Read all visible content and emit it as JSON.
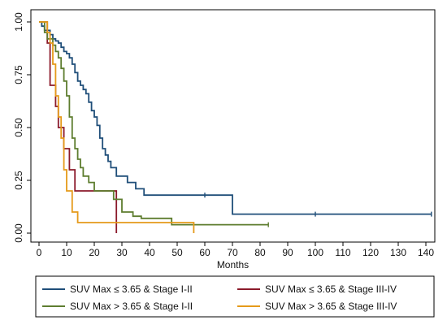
{
  "chart_data": {
    "type": "line",
    "step": true,
    "title": "",
    "xlabel": "Months",
    "ylabel": "",
    "xlim": [
      0,
      145
    ],
    "ylim": [
      0,
      1
    ],
    "xticks": [
      0,
      10,
      20,
      30,
      40,
      50,
      60,
      70,
      80,
      90,
      100,
      110,
      120,
      130,
      140
    ],
    "yticks": [
      0.0,
      0.25,
      0.5,
      0.75,
      1.0
    ],
    "ytick_labels": [
      "0.00",
      "0.25",
      "0.50",
      "0.75",
      "1.00"
    ],
    "grid": false,
    "legend_position": "bottom",
    "series": [
      {
        "name": "SUV Max ≤ 3.65 & Stage I-II",
        "color": "#1f4e79",
        "points": [
          [
            0,
            1.0
          ],
          [
            1,
            0.98
          ],
          [
            2,
            0.96
          ],
          [
            4,
            0.94
          ],
          [
            5,
            0.92
          ],
          [
            6,
            0.91
          ],
          [
            7,
            0.9
          ],
          [
            8,
            0.88
          ],
          [
            9,
            0.86
          ],
          [
            10,
            0.85
          ],
          [
            11,
            0.83
          ],
          [
            12,
            0.8
          ],
          [
            13,
            0.76
          ],
          [
            14,
            0.72
          ],
          [
            15,
            0.7
          ],
          [
            16,
            0.68
          ],
          [
            17,
            0.66
          ],
          [
            18,
            0.62
          ],
          [
            19,
            0.58
          ],
          [
            20,
            0.55
          ],
          [
            21,
            0.51
          ],
          [
            22,
            0.45
          ],
          [
            23,
            0.4
          ],
          [
            24,
            0.37
          ],
          [
            25,
            0.34
          ],
          [
            26,
            0.31
          ],
          [
            28,
            0.27
          ],
          [
            32,
            0.24
          ],
          [
            35,
            0.21
          ],
          [
            38,
            0.18
          ],
          [
            70,
            0.09
          ],
          [
            142,
            0.09
          ]
        ],
        "censored": [
          [
            60,
            0.18
          ],
          [
            100,
            0.09
          ],
          [
            142,
            0.09
          ]
        ]
      },
      {
        "name": "SUV Max ≤ 3.65 & Stage III-IV",
        "color": "#8b1a2b",
        "points": [
          [
            0,
            1.0
          ],
          [
            3,
            0.9
          ],
          [
            4,
            0.7
          ],
          [
            6,
            0.6
          ],
          [
            7,
            0.5
          ],
          [
            9,
            0.4
          ],
          [
            11,
            0.3
          ],
          [
            13,
            0.2
          ],
          [
            28,
            0.0
          ]
        ],
        "censored": []
      },
      {
        "name": "SUV Max > 3.65 & Stage I-II",
        "color": "#5e7d2f",
        "points": [
          [
            0,
            1.0
          ],
          [
            2,
            0.95
          ],
          [
            3,
            0.92
          ],
          [
            5,
            0.89
          ],
          [
            6,
            0.86
          ],
          [
            7,
            0.83
          ],
          [
            8,
            0.78
          ],
          [
            9,
            0.72
          ],
          [
            10,
            0.65
          ],
          [
            11,
            0.55
          ],
          [
            12,
            0.45
          ],
          [
            13,
            0.4
          ],
          [
            14,
            0.35
          ],
          [
            15,
            0.31
          ],
          [
            16,
            0.27
          ],
          [
            18,
            0.24
          ],
          [
            20,
            0.2
          ],
          [
            27,
            0.16
          ],
          [
            30,
            0.1
          ],
          [
            34,
            0.08
          ],
          [
            37,
            0.07
          ],
          [
            48,
            0.04
          ],
          [
            83,
            0.04
          ]
        ],
        "censored": [
          [
            56,
            0.04
          ],
          [
            83,
            0.04
          ]
        ]
      },
      {
        "name": "SUV Max > 3.65 & Stage III-IV",
        "color": "#e59a1a",
        "points": [
          [
            0,
            1.0
          ],
          [
            3,
            0.95
          ],
          [
            4,
            0.9
          ],
          [
            5,
            0.8
          ],
          [
            6,
            0.65
          ],
          [
            7,
            0.55
          ],
          [
            8,
            0.45
          ],
          [
            9,
            0.3
          ],
          [
            10,
            0.2
          ],
          [
            12,
            0.1
          ],
          [
            14,
            0.05
          ],
          [
            56,
            0.0
          ]
        ],
        "censored": []
      }
    ]
  }
}
